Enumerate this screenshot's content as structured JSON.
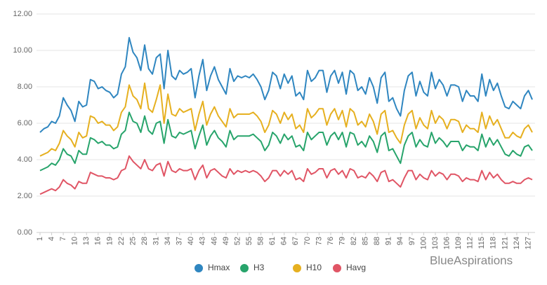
{
  "chart_data": {
    "type": "line",
    "x": [
      1,
      2,
      3,
      4,
      5,
      6,
      7,
      8,
      9,
      10,
      11,
      12,
      13,
      14,
      15,
      16,
      17,
      18,
      19,
      20,
      21,
      22,
      23,
      24,
      25,
      26,
      27,
      28,
      29,
      30,
      31,
      32,
      33,
      34,
      35,
      36,
      37,
      38,
      39,
      40,
      41,
      42,
      43,
      44,
      45,
      46,
      47,
      48,
      49,
      50,
      51,
      52,
      53,
      54,
      55,
      56,
      57,
      58,
      59,
      60,
      61,
      62,
      63,
      64,
      65,
      66,
      67,
      68,
      69,
      70,
      71,
      72,
      73,
      74,
      75,
      76,
      77,
      78,
      79,
      80,
      81,
      82,
      83,
      84,
      85,
      86,
      87,
      88,
      89,
      90,
      91,
      92,
      93,
      94,
      95,
      96,
      97,
      98,
      99,
      100,
      101,
      102,
      103,
      104,
      105,
      106,
      107,
      108,
      109,
      110,
      111,
      112,
      113,
      114,
      115,
      116,
      117,
      118,
      119,
      120,
      121,
      122,
      123,
      124,
      125,
      126,
      127,
      128
    ],
    "xlim": [
      1,
      128
    ],
    "xticks": [
      1,
      4,
      7,
      10,
      13,
      16,
      19,
      22,
      25,
      28,
      31,
      34,
      37,
      40,
      43,
      46,
      49,
      52,
      55,
      58,
      61,
      64,
      67,
      70,
      73,
      76,
      79,
      82,
      85,
      88,
      91,
      94,
      97,
      100,
      103,
      106,
      109,
      112,
      115,
      118,
      121,
      124,
      127
    ],
    "ylim": [
      0,
      12
    ],
    "yticks": [
      {
        "value": 0,
        "label": "0.00"
      },
      {
        "value": 2,
        "label": "2.00"
      },
      {
        "value": 4,
        "label": "4.00"
      },
      {
        "value": 6,
        "label": "6.00"
      },
      {
        "value": 8,
        "label": "8.00"
      },
      {
        "value": 10,
        "label": "10.00"
      },
      {
        "value": 12,
        "label": "12.00"
      }
    ],
    "grid": true,
    "legend": "bottom",
    "watermark": "BlueAspirations",
    "series": [
      {
        "name": "Hmax",
        "color": "#2f86c0",
        "values": [
          5.5,
          5.7,
          5.8,
          6.1,
          6.0,
          6.4,
          7.4,
          7.0,
          6.7,
          6.1,
          7.2,
          6.9,
          7.0,
          8.4,
          8.3,
          7.9,
          8.0,
          7.8,
          7.7,
          7.4,
          7.6,
          8.7,
          9.1,
          10.7,
          9.9,
          9.6,
          8.9,
          10.3,
          9.0,
          8.7,
          9.6,
          9.8,
          7.9,
          10.0,
          8.6,
          8.4,
          8.9,
          8.7,
          8.8,
          9.0,
          7.4,
          8.6,
          9.5,
          7.8,
          8.6,
          9.1,
          8.4,
          8.0,
          7.6,
          9.0,
          8.3,
          8.6,
          8.5,
          8.6,
          8.5,
          8.7,
          8.4,
          8.0,
          7.3,
          7.8,
          8.8,
          8.6,
          7.9,
          8.7,
          8.2,
          8.6,
          7.5,
          7.7,
          7.3,
          8.9,
          8.3,
          8.5,
          8.9,
          8.9,
          7.7,
          8.6,
          8.9,
          8.2,
          8.8,
          7.6,
          8.9,
          8.7,
          7.8,
          8.0,
          7.6,
          8.5,
          8.0,
          7.1,
          8.5,
          8.8,
          7.2,
          7.4,
          6.8,
          6.4,
          7.8,
          8.6,
          8.8,
          7.5,
          8.3,
          7.7,
          7.5,
          8.8,
          7.9,
          8.4,
          8.1,
          7.5,
          8.1,
          8.1,
          8.0,
          7.2,
          7.8,
          7.5,
          7.5,
          7.2,
          8.7,
          7.5,
          8.4,
          7.8,
          8.2,
          7.5,
          6.9,
          6.8,
          7.2,
          7.0,
          6.8,
          7.5,
          7.8,
          7.3
        ]
      },
      {
        "name": "H3",
        "color": "#27a46b",
        "values": [
          3.4,
          3.5,
          3.6,
          3.8,
          3.7,
          4.0,
          4.6,
          4.3,
          4.2,
          3.8,
          4.5,
          4.3,
          4.3,
          5.2,
          5.1,
          4.9,
          5.0,
          4.8,
          4.8,
          4.6,
          4.7,
          5.4,
          5.6,
          6.6,
          6.1,
          6.0,
          5.5,
          6.4,
          5.6,
          5.4,
          6.0,
          6.1,
          4.9,
          6.2,
          5.3,
          5.2,
          5.5,
          5.4,
          5.5,
          5.6,
          4.6,
          5.3,
          5.9,
          4.8,
          5.3,
          5.6,
          5.2,
          5.0,
          4.7,
          5.6,
          5.1,
          5.3,
          5.3,
          5.3,
          5.3,
          5.4,
          5.2,
          5.0,
          4.5,
          4.8,
          5.5,
          5.3,
          4.9,
          5.4,
          5.1,
          5.3,
          4.7,
          4.8,
          4.5,
          5.5,
          5.1,
          5.3,
          5.5,
          5.5,
          4.8,
          5.3,
          5.5,
          5.1,
          5.5,
          4.7,
          5.5,
          5.4,
          4.8,
          5.0,
          4.7,
          5.3,
          5.0,
          4.4,
          5.3,
          5.5,
          4.5,
          4.6,
          4.2,
          3.8,
          4.8,
          5.3,
          5.5,
          4.7,
          5.1,
          4.8,
          4.7,
          5.5,
          4.9,
          5.2,
          5.0,
          4.7,
          5.0,
          5.0,
          5.0,
          4.5,
          4.8,
          4.7,
          4.7,
          4.5,
          5.4,
          4.7,
          5.2,
          4.8,
          5.1,
          4.7,
          4.3,
          4.2,
          4.5,
          4.3,
          4.2,
          4.7,
          4.8,
          4.5
        ]
      },
      {
        "name": "H10",
        "color": "#e6b020",
        "values": [
          4.2,
          4.3,
          4.4,
          4.6,
          4.5,
          4.9,
          5.6,
          5.3,
          5.1,
          4.7,
          5.5,
          5.2,
          5.3,
          6.4,
          6.3,
          6.0,
          6.1,
          5.9,
          5.9,
          5.6,
          5.8,
          6.6,
          6.9,
          8.1,
          7.5,
          7.3,
          6.8,
          8.2,
          6.8,
          6.6,
          7.3,
          8.1,
          6.0,
          7.6,
          6.5,
          6.4,
          6.8,
          6.6,
          6.7,
          6.8,
          5.6,
          6.5,
          7.2,
          5.9,
          6.5,
          6.9,
          6.4,
          6.1,
          5.8,
          6.8,
          6.3,
          6.5,
          6.5,
          6.5,
          6.5,
          6.6,
          6.4,
          6.1,
          5.5,
          5.9,
          6.7,
          6.5,
          6.0,
          6.6,
          6.2,
          6.5,
          5.7,
          5.9,
          5.5,
          6.8,
          6.3,
          6.5,
          6.8,
          6.8,
          5.9,
          6.5,
          6.8,
          6.2,
          6.7,
          5.8,
          6.8,
          6.6,
          5.9,
          6.1,
          5.8,
          6.5,
          6.1,
          5.4,
          6.5,
          6.7,
          5.5,
          5.6,
          5.2,
          4.9,
          5.9,
          6.5,
          6.7,
          5.7,
          6.3,
          5.9,
          5.7,
          6.7,
          6.0,
          6.4,
          6.2,
          5.7,
          6.2,
          6.2,
          6.1,
          5.5,
          5.9,
          5.7,
          5.7,
          5.5,
          6.6,
          5.7,
          6.4,
          5.9,
          6.2,
          5.7,
          5.2,
          5.2,
          5.5,
          5.3,
          5.2,
          5.7,
          5.9,
          5.5
        ]
      },
      {
        "name": "Havg",
        "color": "#e05565",
        "values": [
          2.1,
          2.2,
          2.3,
          2.4,
          2.3,
          2.5,
          2.9,
          2.7,
          2.6,
          2.4,
          2.8,
          2.7,
          2.7,
          3.3,
          3.2,
          3.1,
          3.1,
          3.0,
          3.0,
          2.9,
          3.0,
          3.4,
          3.5,
          4.2,
          3.9,
          3.7,
          3.5,
          4.0,
          3.5,
          3.4,
          3.7,
          3.8,
          3.1,
          3.9,
          3.4,
          3.3,
          3.5,
          3.4,
          3.4,
          3.5,
          2.9,
          3.4,
          3.7,
          3.0,
          3.4,
          3.5,
          3.3,
          3.1,
          3.0,
          3.5,
          3.2,
          3.4,
          3.3,
          3.4,
          3.3,
          3.4,
          3.3,
          3.1,
          2.8,
          3.0,
          3.4,
          3.4,
          3.1,
          3.4,
          3.2,
          3.4,
          2.9,
          3.0,
          2.8,
          3.5,
          3.2,
          3.3,
          3.5,
          3.5,
          3.0,
          3.4,
          3.5,
          3.2,
          3.4,
          3.0,
          3.5,
          3.4,
          3.0,
          3.1,
          3.0,
          3.3,
          3.1,
          2.8,
          3.3,
          3.4,
          2.8,
          2.9,
          2.7,
          2.5,
          3.0,
          3.4,
          3.4,
          2.9,
          3.2,
          3.0,
          2.9,
          3.4,
          3.1,
          3.3,
          3.2,
          2.9,
          3.2,
          3.2,
          3.1,
          2.8,
          3.0,
          2.9,
          2.9,
          2.8,
          3.4,
          2.9,
          3.3,
          3.0,
          3.2,
          2.9,
          2.7,
          2.7,
          2.8,
          2.7,
          2.7,
          2.9,
          3.0,
          2.9
        ]
      }
    ]
  }
}
